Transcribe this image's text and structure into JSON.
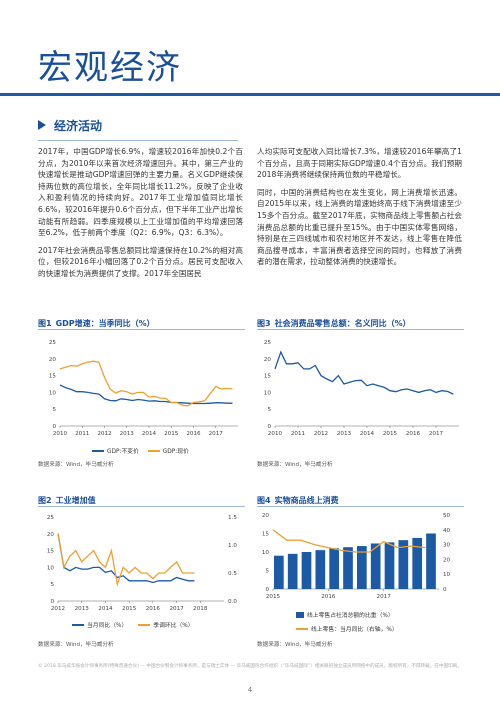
{
  "page": {
    "title": "宏观经济",
    "section": "经济活动",
    "page_number": "4",
    "disclaimer": "© 2018 毕马威华振会计师事务所(特殊普通合伙) — 中国合伙制会计师事务所，是与瑞士实体 — 毕马威国际合作组织（“毕马威国际”）相关联的独立成员所网络中的成员。版权所有，不得转载。在中国印刷。"
  },
  "text": {
    "left_col": [
      "2017年，中国GDP增长6.9%，增速较2016年加快0.2个百分点，为2010年以来首次经济增速回升。其中，第三产业的快速增长是推动GDP增速回弹的主要力量。名义GDP继续保持两位数的高位增长，全年同比增长11.2%，反映了企业收入和盈利情况的持续向好。2017年工业增加值同比增长6.6%，较2016年提升0.6个百分点，但下半年工业产出增长动能有所趋弱。四季度规模以上工业增加值的平均增速回落至6.2%，低于前两个季度（Q2：6.9%，Q3：6.3%）。",
      "2017年社会消费品零售总额同比增速保持在10.2%的相对高位，但较2016年小幅回落了0.2个百分点。居民可支配收入的快速增长为消费提供了支撑。2017年全国居民"
    ],
    "right_col": [
      "人均实际可支配收入同比增长7.3%，增速较2016年攀高了1个百分点，且高于同期实际GDP增速0.4个百分点。我们预期2018年消费将继续保持两位数的平稳增长。",
      "同时，中国的消费结构也在发生变化，网上消费增长迅速。自2015年以来，线上消费的增速始终高于线下消费增速至少15多个百分点。截至2017年底，实物商品线上零售额占社会消费品总额的比重已提升至15%。由于中国实体零售网络，特别是在三四线城市和农村地区并不发达，线上零售在降低商品搜寻成本，丰富消费者选择空间的同时，也释放了消费者的潜在需求，拉动整体消费的快速增长。"
    ]
  },
  "figures": {
    "fig1": {
      "num": "图1",
      "title": "GDP增速：当季同比（%）",
      "source": "数据来源：Wind，毕马威分析",
      "legend": [
        "GDP:不变价",
        "GDP:现价"
      ]
    },
    "fig2": {
      "num": "图2",
      "title": "工业增加值",
      "source": "数据来源：Wind，毕马威分析",
      "legend": [
        "当月同比（%）",
        "季调环比（%）"
      ]
    },
    "fig3": {
      "num": "图3",
      "title": "社会消费品零售总额：名义同比（%）",
      "source": "数据来源：Wind，毕马威分析"
    },
    "fig4": {
      "num": "图4",
      "title": "实物商品线上消费",
      "source": "数据来源：Wind，毕马威分析",
      "legend": [
        "线上零售占社消总额的比重（%）",
        "线上零售：当月同比（右轴，%）"
      ]
    }
  },
  "colors": {
    "blue": "#1c5aa6",
    "orange": "#f0a030",
    "title_blue": "#1a4f9c"
  },
  "chart_data": [
    {
      "type": "line",
      "title": "GDP增速：当季同比（%）",
      "x": [
        2010.0,
        2010.25,
        2010.5,
        2010.75,
        2011.0,
        2011.25,
        2011.5,
        2011.75,
        2012.0,
        2012.25,
        2012.5,
        2012.75,
        2013.0,
        2013.25,
        2013.5,
        2013.75,
        2014.0,
        2014.25,
        2014.5,
        2014.75,
        2015.0,
        2015.25,
        2015.5,
        2015.75,
        2016.0,
        2016.25,
        2016.5,
        2016.75,
        2017.0,
        2017.25,
        2017.5,
        2017.75
      ],
      "series": [
        {
          "name": "GDP:不变价",
          "values": [
            12.2,
            11.4,
            10.9,
            10.2,
            10.2,
            10.0,
            9.7,
            9.5,
            8.1,
            7.6,
            7.5,
            8.1,
            7.9,
            7.6,
            7.9,
            7.7,
            7.4,
            7.5,
            7.3,
            7.3,
            7.0,
            7.0,
            6.9,
            6.8,
            6.7,
            6.7,
            6.7,
            6.8,
            6.9,
            6.9,
            6.8,
            6.8
          ]
        },
        {
          "name": "GDP:现价",
          "values": [
            17.0,
            17.5,
            18.0,
            17.8,
            18.5,
            19.0,
            19.3,
            19.0,
            14.5,
            11.0,
            9.8,
            10.5,
            10.2,
            9.5,
            10.0,
            10.0,
            8.6,
            8.8,
            8.3,
            8.2,
            7.0,
            7.0,
            6.2,
            6.0,
            7.0,
            7.2,
            7.5,
            9.6,
            11.8,
            11.0,
            11.2,
            11.0
          ]
        }
      ],
      "xlabel": "",
      "ylabel": "",
      "ylim": [
        0,
        25
      ],
      "xticks": [
        "2010",
        "2011",
        "2012",
        "2013",
        "2014",
        "2015",
        "2016",
        "2017"
      ],
      "yticks": [
        "0",
        "5",
        "10",
        "15",
        "20",
        "25"
      ]
    },
    {
      "type": "line",
      "title": "社会消费品零售总额：名义同比（%）",
      "x": [
        2010.0,
        2010.25,
        2010.5,
        2010.75,
        2011.0,
        2011.25,
        2011.5,
        2011.75,
        2012.0,
        2012.25,
        2012.5,
        2012.75,
        2013.0,
        2013.25,
        2013.5,
        2013.75,
        2014.0,
        2014.25,
        2014.5,
        2014.75,
        2015.0,
        2015.25,
        2015.5,
        2015.75,
        2016.0,
        2016.25,
        2016.5,
        2016.75,
        2017.0,
        2017.25,
        2017.5,
        2017.75
      ],
      "series": [
        {
          "name": "社会消费品零售总额",
          "values": [
            17.0,
            22.0,
            18.5,
            18.5,
            18.8,
            17.0,
            17.0,
            18.0,
            15.0,
            14.0,
            13.2,
            15.0,
            12.5,
            13.0,
            13.5,
            13.6,
            12.0,
            12.5,
            12.0,
            11.5,
            10.5,
            10.2,
            10.8,
            11.0,
            10.5,
            10.0,
            10.5,
            10.8,
            10.0,
            10.5,
            10.3,
            9.5
          ]
        }
      ],
      "xlabel": "",
      "ylabel": "",
      "ylim": [
        0,
        25
      ],
      "xticks": [
        "2010",
        "2011",
        "2012",
        "2013",
        "2014",
        "2015",
        "2016",
        "2017"
      ],
      "yticks": [
        "0",
        "5",
        "10",
        "15",
        "20",
        "25"
      ]
    },
    {
      "type": "line",
      "title": "工业增加值",
      "x": [
        2012.0,
        2012.25,
        2012.5,
        2012.75,
        2013.0,
        2013.25,
        2013.5,
        2013.75,
        2014.0,
        2014.25,
        2014.5,
        2014.75,
        2015.0,
        2015.25,
        2015.5,
        2015.75,
        2016.0,
        2016.25,
        2016.5,
        2016.75,
        2017.0,
        2017.25,
        2017.5,
        2017.75
      ],
      "series": [
        {
          "name": "当月同比（%）",
          "axis": "left",
          "values": [
            20.0,
            10.0,
            9.0,
            10.0,
            9.5,
            9.5,
            10.0,
            10.0,
            8.5,
            9.0,
            7.0,
            7.5,
            6.0,
            6.0,
            6.0,
            6.0,
            5.5,
            6.0,
            6.0,
            6.0,
            7.0,
            6.5,
            6.0,
            6.0
          ]
        },
        {
          "name": "季调环比（%）",
          "axis": "right",
          "values": [
            1.2,
            0.6,
            0.8,
            0.9,
            0.7,
            0.8,
            0.9,
            0.7,
            0.6,
            0.9,
            0.3,
            0.6,
            0.5,
            0.6,
            0.5,
            0.5,
            0.4,
            0.5,
            0.5,
            0.6,
            0.7,
            0.5,
            0.5,
            0.5
          ]
        }
      ],
      "xlabel": "",
      "ylabel": "",
      "ylim": [
        0,
        25
      ],
      "y2lim": [
        0,
        1.5
      ],
      "xticks": [
        "2012",
        "2013",
        "2014",
        "2015",
        "2016",
        "2017",
        "2018"
      ],
      "yticks": [
        "0",
        "5",
        "10",
        "15",
        "20",
        "25"
      ],
      "y2ticks": [
        "0.0",
        "0.5",
        "1.0",
        "1.5"
      ]
    },
    {
      "type": "bar",
      "title": "实物商品线上消费",
      "x": [
        2015.0,
        2015.25,
        2015.5,
        2015.75,
        2016.0,
        2016.25,
        2016.5,
        2016.75,
        2017.0,
        2017.25,
        2017.5,
        2017.75
      ],
      "series": [
        {
          "name": "线上零售占社消总额的比重（%）",
          "axis": "left",
          "kind": "bar",
          "values": [
            9.0,
            9.5,
            10.0,
            10.5,
            11.0,
            11.3,
            11.6,
            12.3,
            12.6,
            13.2,
            13.8,
            15.0
          ]
        },
        {
          "name": "线上零售：当月同比（右轴，%）",
          "axis": "right",
          "kind": "line",
          "values": [
            40.0,
            33.0,
            33.0,
            30.0,
            28.0,
            26.0,
            25.0,
            25.0,
            32.0,
            28.0,
            29.0,
            28.0
          ]
        }
      ],
      "xlabel": "",
      "ylabel": "",
      "ylim": [
        0,
        20
      ],
      "y2lim": [
        0,
        50
      ],
      "xticks": [
        "2015",
        "2016",
        "2017"
      ],
      "yticks": [
        "0",
        "5",
        "10",
        "15",
        "20"
      ],
      "y2ticks": [
        "0",
        "10",
        "20",
        "30",
        "40",
        "50"
      ]
    }
  ]
}
